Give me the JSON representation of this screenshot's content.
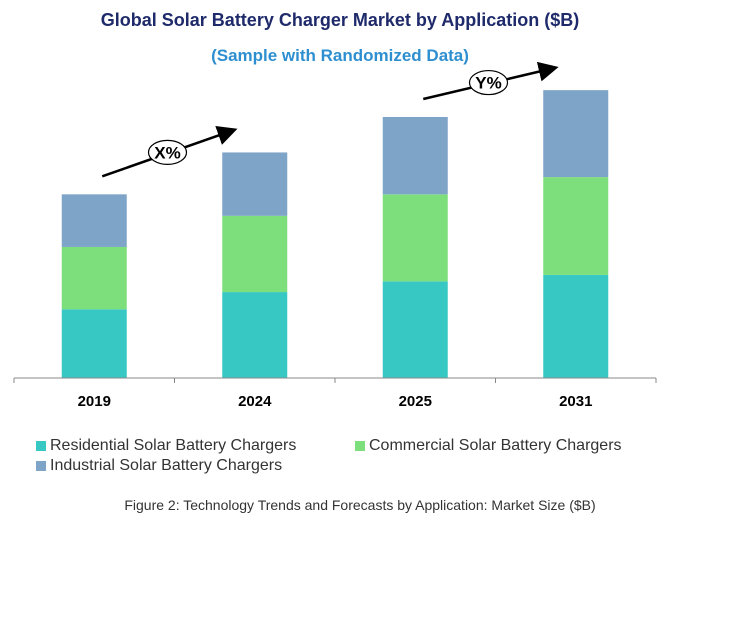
{
  "chart_data": {
    "type": "bar",
    "stacked": true,
    "title": "Global Solar Battery Charger Market by Application ($B)",
    "subtitle": "(Sample with Randomized Data)",
    "categories": [
      "2019",
      "2024",
      "2025",
      "2031"
    ],
    "series": [
      {
        "name": "Residential Solar Battery Chargers",
        "color": "#38c8c4",
        "values": [
          64,
          80,
          90,
          96
        ]
      },
      {
        "name": "Commercial Solar Battery Chargers",
        "color": "#7ddf7c",
        "values": [
          58,
          71,
          81,
          91
        ]
      },
      {
        "name": "Industrial Solar Battery Chargers",
        "color": "#7ea4c8",
        "values": [
          49,
          59,
          72,
          81
        ]
      }
    ],
    "annotations": [
      {
        "label": "X%",
        "from": "2019",
        "to": "2024"
      },
      {
        "label": "Y%",
        "from": "2025",
        "to": "2031"
      }
    ],
    "xlabel": "",
    "ylabel": "",
    "ylim": [
      0,
      270
    ],
    "grid": false,
    "legend": "bottom"
  },
  "caption": "Figure 2: Technology Trends and Forecasts by Application: Market Size ($B)"
}
